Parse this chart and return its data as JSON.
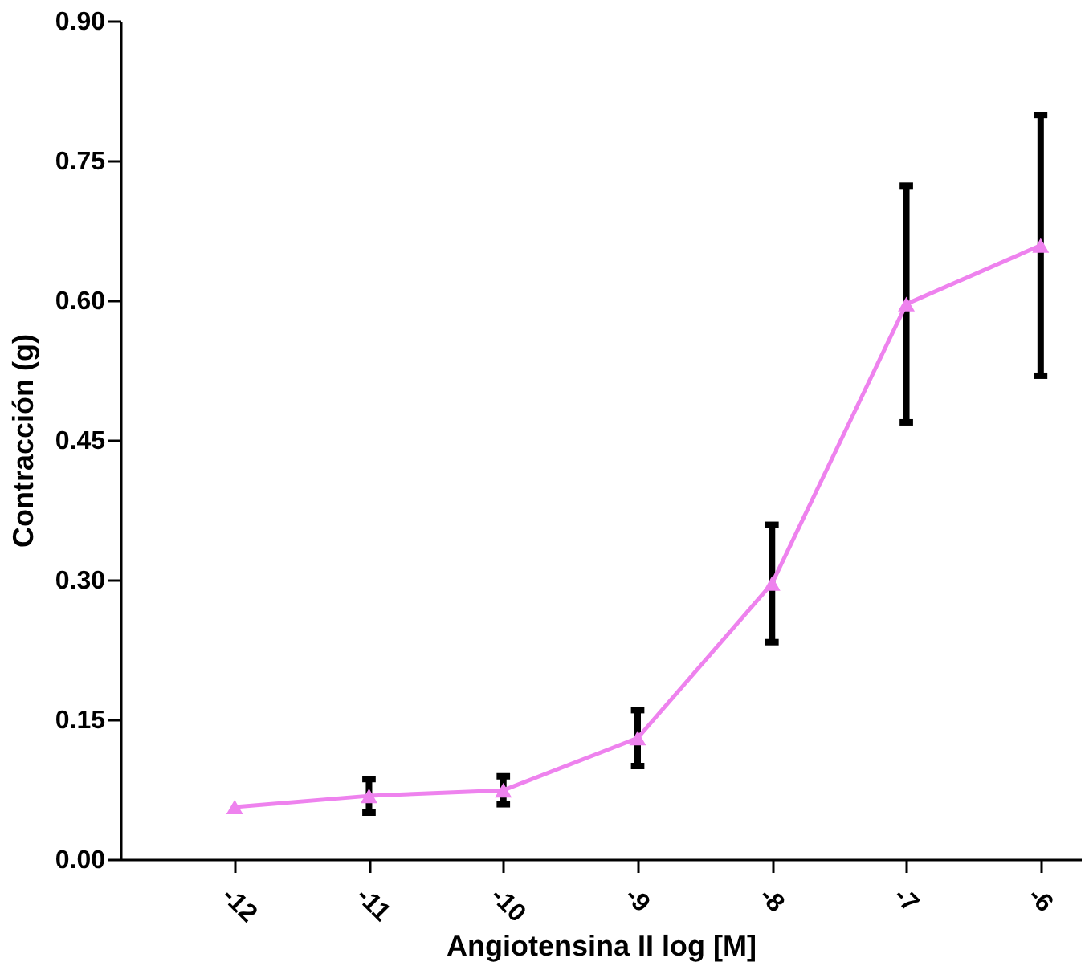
{
  "chart_data": {
    "type": "line",
    "xlabel": "Angiotensina II log [M]",
    "ylabel": "Contracción (g)",
    "x": [
      -12,
      -11,
      -10,
      -9,
      -8,
      -7,
      -6
    ],
    "series": [
      {
        "color": "#ee82ee",
        "values": [
          0.056,
          0.068,
          0.074,
          0.13,
          0.296,
          0.596,
          0.659
        ],
        "errors": [
          null,
          0.018,
          0.015,
          0.03,
          0.063,
          0.127,
          0.14
        ]
      }
    ],
    "xlim": [
      -12.85,
      -5.7
    ],
    "xticks": [
      -12,
      -11,
      -10,
      -9,
      -8,
      -7,
      -6
    ],
    "ylim": [
      0,
      0.9
    ],
    "yticks": [
      {
        "value": 0,
        "label": "0.00"
      },
      {
        "value": 0.15,
        "label": "0.15"
      },
      {
        "value": 0.3,
        "label": "0.30"
      },
      {
        "value": 0.45,
        "label": "0.45"
      },
      {
        "value": 0.6,
        "label": "0.60"
      },
      {
        "value": 0.75,
        "label": "0.75"
      },
      {
        "value": 0.9,
        "label": "0.90"
      }
    ],
    "marker": "triangle",
    "line_style": "solid",
    "grid": false
  }
}
